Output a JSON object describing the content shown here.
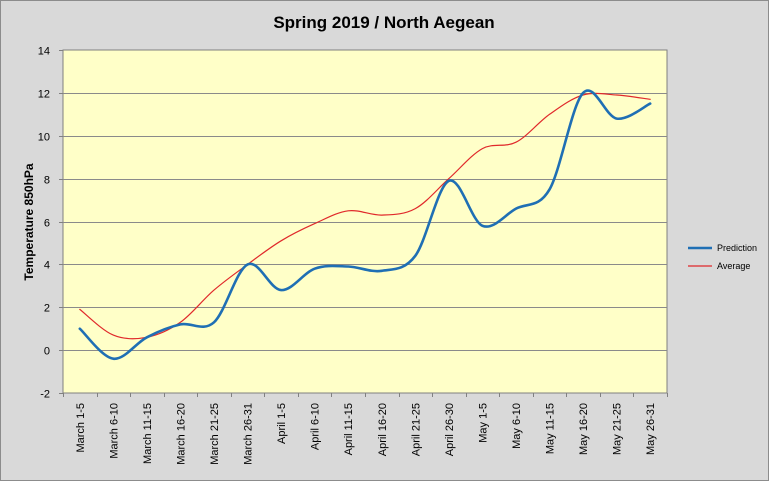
{
  "chart_data": {
    "type": "line",
    "title": "Spring 2019 / North Aegean",
    "xlabel": "",
    "ylabel": "Temperature 850hPa",
    "ylim": [
      -2,
      14
    ],
    "yticks": [
      -2,
      0,
      2,
      4,
      6,
      8,
      10,
      12,
      14
    ],
    "grid": true,
    "legend_position": "right",
    "categories": [
      "March 1-5",
      "March 6-10",
      "March 11-15",
      "March 16-20",
      "March 21-25",
      "March 26-31",
      "April 1-5",
      "April 6-10",
      "April 11-15",
      "April 16-20",
      "April 21-25",
      "April 26-30",
      "May 1-5",
      "May 6-10",
      "May 11-15",
      "May 16-20",
      "May 21-25",
      "May 26-31"
    ],
    "series": [
      {
        "name": "Prediction",
        "color": "#1f6fb4",
        "values": [
          1.0,
          -0.4,
          0.6,
          1.2,
          1.3,
          4.0,
          2.8,
          3.8,
          3.9,
          3.7,
          4.4,
          7.9,
          5.8,
          6.6,
          7.5,
          12.0,
          10.8,
          11.5
        ]
      },
      {
        "name": "Average",
        "color": "#e0292b",
        "values": [
          1.9,
          0.7,
          0.6,
          1.3,
          2.8,
          4.0,
          5.1,
          5.9,
          6.5,
          6.3,
          6.6,
          8.0,
          9.4,
          9.7,
          11.0,
          11.9,
          11.9,
          11.7
        ]
      }
    ],
    "plot_background": "#ffffc8"
  }
}
